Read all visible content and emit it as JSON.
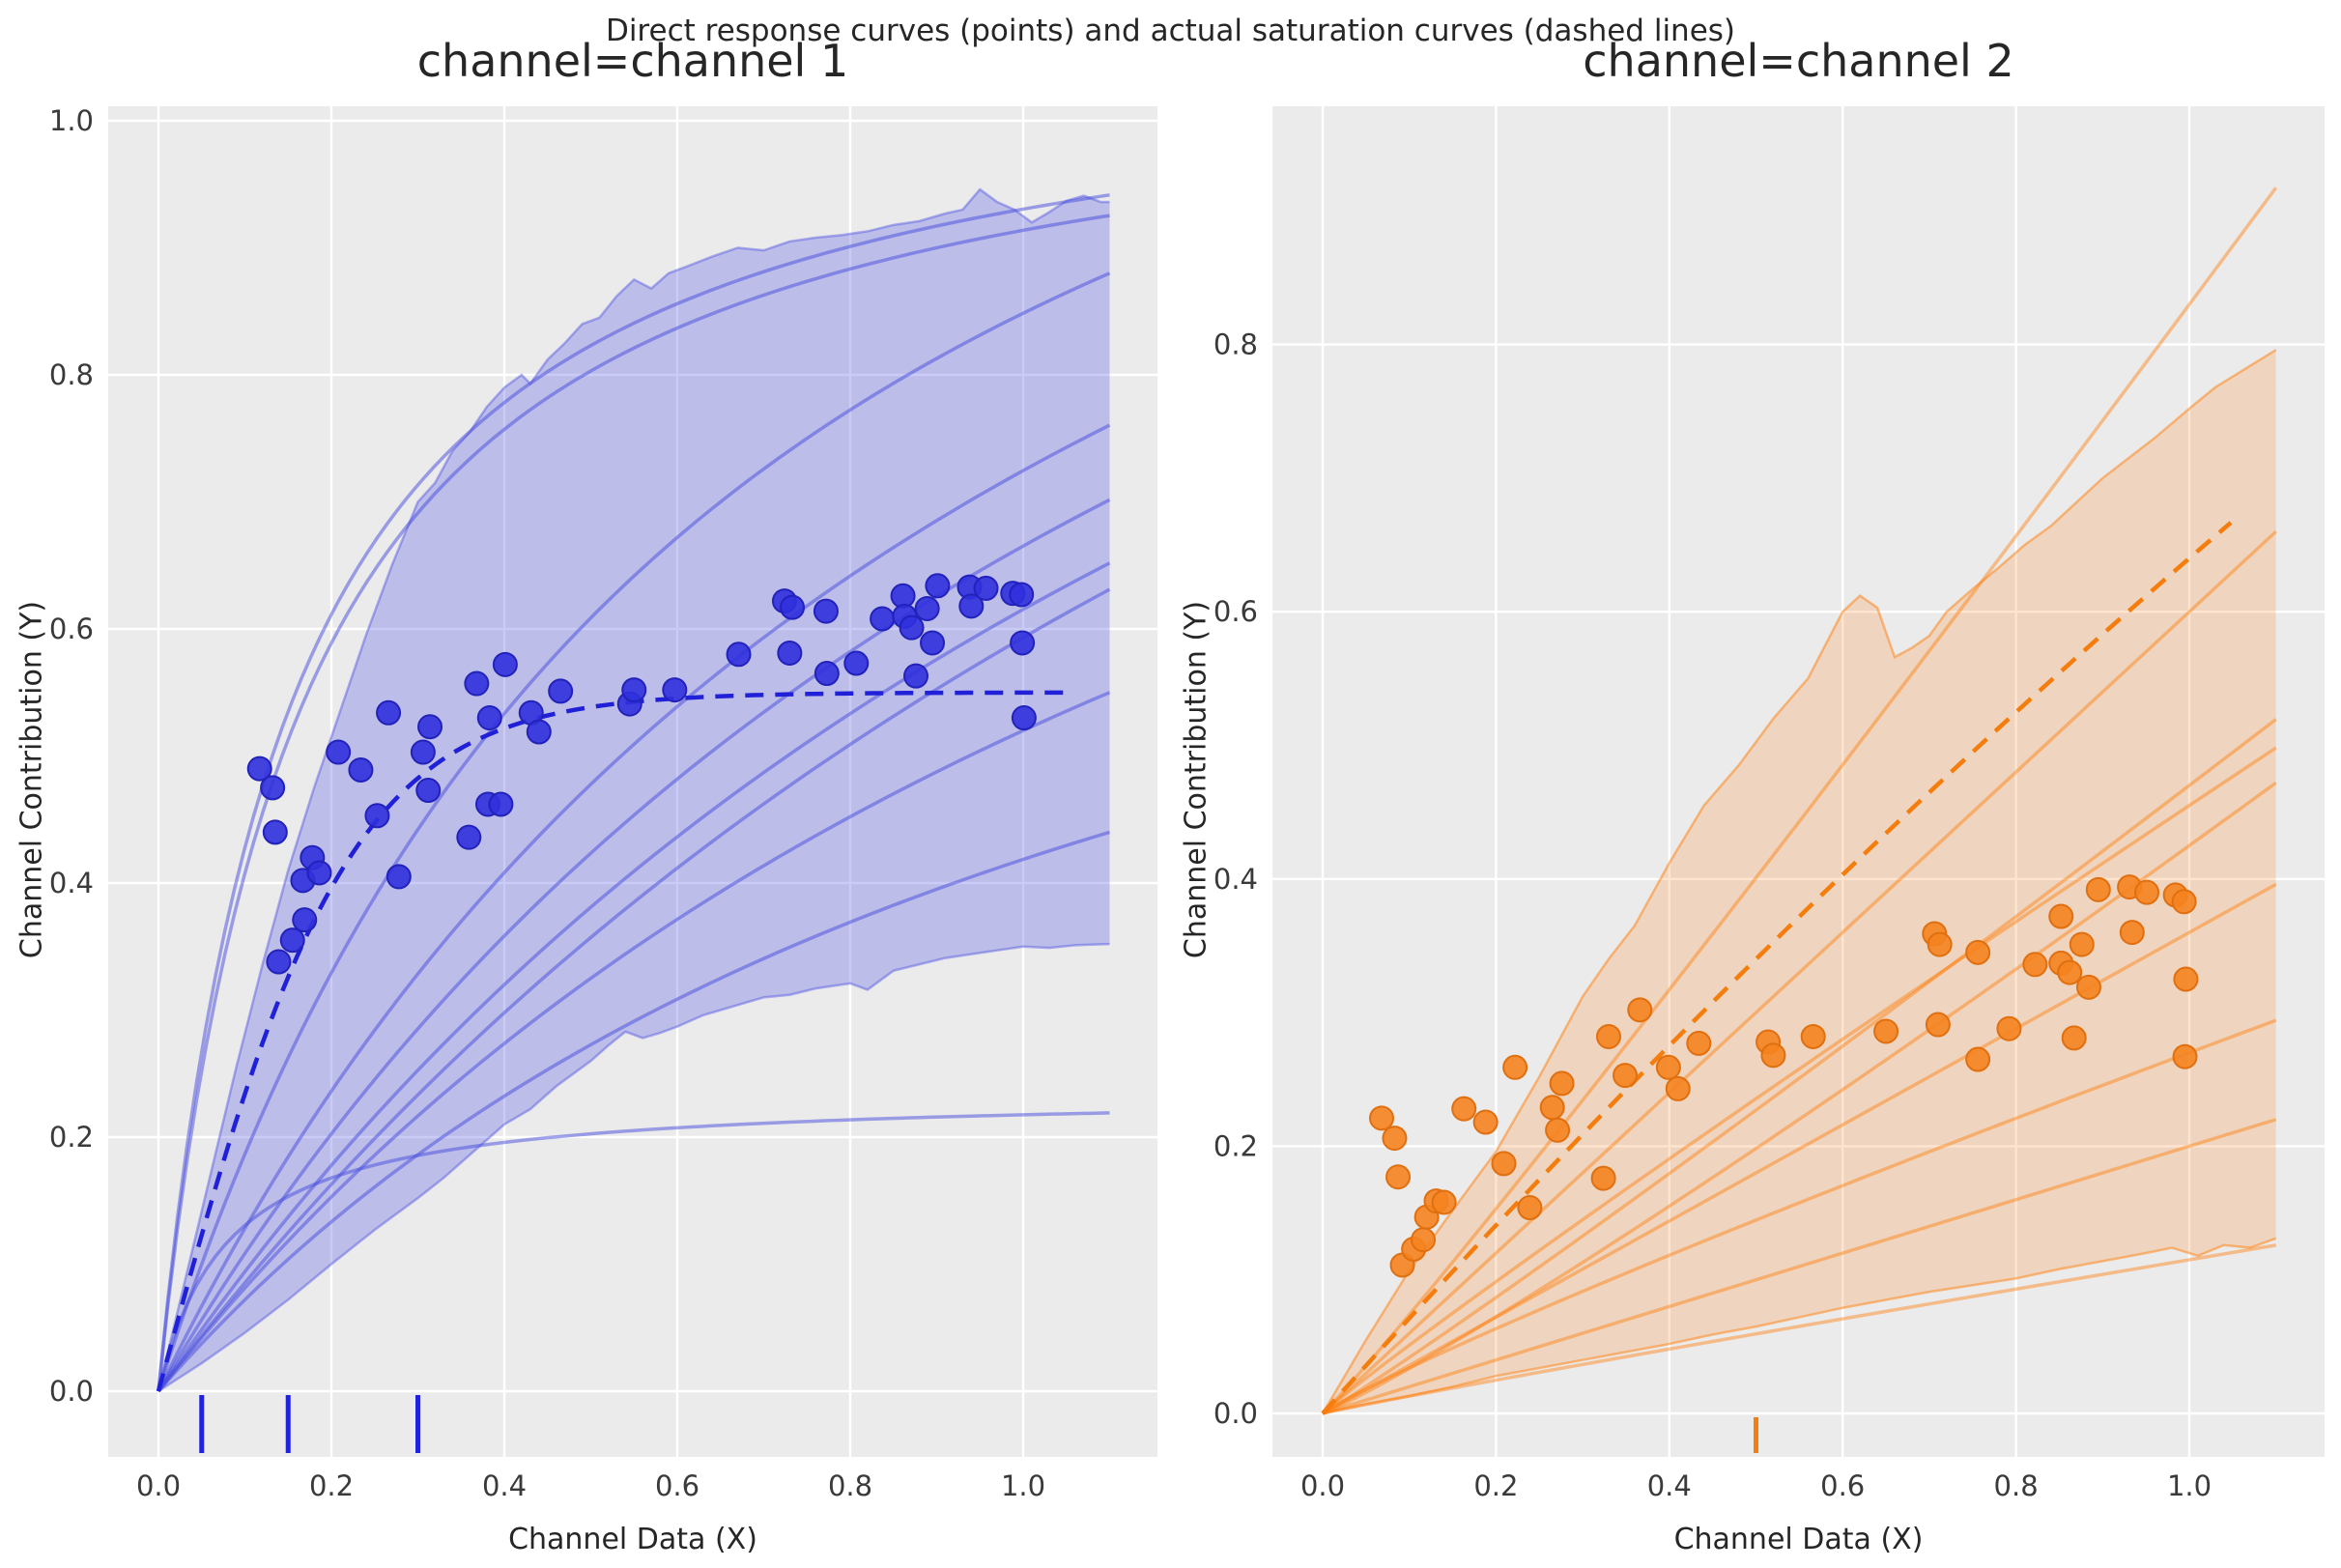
{
  "suptitle": "Direct response curves (points) and actual saturation curves (dashed lines)",
  "chart_data": [
    {
      "panel": "left",
      "type": "scatter",
      "title": "channel=channel 1",
      "xlabel": "Channel Data (X)",
      "ylabel": "Channel Contribution (Y)",
      "x_ticks": [
        0.0,
        0.2,
        0.4,
        0.6,
        0.8,
        1.0
      ],
      "y_ticks": [
        0.0,
        0.2,
        0.4,
        0.6,
        0.8,
        1.0
      ],
      "xlim": [
        -0.058,
        1.156
      ],
      "ylim": [
        -0.052,
        1.011
      ],
      "grid": true,
      "legend": "none",
      "colors": {
        "point": "#3030dd",
        "point_edge": "#2222bb",
        "dashed": "#2020d8",
        "curve": "rgba(70,75,222,0.5)",
        "band_fill": "rgba(79,84,226,0.30)",
        "band_edge": "rgba(79,84,226,0.45)",
        "rug": "#2222dd"
      },
      "scatter": [
        [
          0.117,
          0.49
        ],
        [
          0.132,
          0.475
        ],
        [
          0.135,
          0.44
        ],
        [
          0.139,
          0.338
        ],
        [
          0.155,
          0.355
        ],
        [
          0.167,
          0.402
        ],
        [
          0.169,
          0.371
        ],
        [
          0.178,
          0.42
        ],
        [
          0.186,
          0.408
        ],
        [
          0.208,
          0.503
        ],
        [
          0.234,
          0.489
        ],
        [
          0.253,
          0.453
        ],
        [
          0.266,
          0.534
        ],
        [
          0.278,
          0.405
        ],
        [
          0.306,
          0.503
        ],
        [
          0.312,
          0.473
        ],
        [
          0.314,
          0.523
        ],
        [
          0.359,
          0.436
        ],
        [
          0.368,
          0.557
        ],
        [
          0.381,
          0.462
        ],
        [
          0.396,
          0.462
        ],
        [
          0.383,
          0.53
        ],
        [
          0.401,
          0.572
        ],
        [
          0.431,
          0.534
        ],
        [
          0.44,
          0.519
        ],
        [
          0.465,
          0.551
        ],
        [
          0.545,
          0.541
        ],
        [
          0.55,
          0.552
        ],
        [
          0.597,
          0.552
        ],
        [
          0.671,
          0.58
        ],
        [
          0.724,
          0.622
        ],
        [
          0.733,
          0.617
        ],
        [
          0.73,
          0.581
        ],
        [
          0.772,
          0.614
        ],
        [
          0.773,
          0.565
        ],
        [
          0.807,
          0.573
        ],
        [
          0.837,
          0.608
        ],
        [
          0.861,
          0.626
        ],
        [
          0.863,
          0.61
        ],
        [
          0.871,
          0.601
        ],
        [
          0.876,
          0.563
        ],
        [
          0.889,
          0.616
        ],
        [
          0.895,
          0.589
        ],
        [
          0.901,
          0.634
        ],
        [
          0.938,
          0.633
        ],
        [
          0.94,
          0.618
        ],
        [
          0.957,
          0.632
        ],
        [
          0.988,
          0.628
        ],
        [
          0.998,
          0.627
        ],
        [
          0.999,
          0.589
        ],
        [
          1.001,
          0.53
        ]
      ],
      "dashed_curve": {
        "label": "actual saturation curve",
        "form": "tanh",
        "a": 0.55,
        "b": 0.22,
        "x_max": 1.05
      },
      "posterior_curves": [
        {
          "form": "hill",
          "a": 1.07,
          "k": 0.15
        },
        {
          "form": "hill",
          "a": 1.06,
          "k": 0.16
        },
        {
          "form": "hill",
          "a": 1.4,
          "k": 0.65
        },
        {
          "form": "hill",
          "a": 1.5,
          "k": 1.07
        },
        {
          "form": "hill",
          "a": 1.55,
          "k": 1.33
        },
        {
          "form": "hill",
          "a": 1.6,
          "k": 1.6
        },
        {
          "form": "hill",
          "a": 1.75,
          "k": 1.95
        },
        {
          "form": "hill",
          "a": 1.3,
          "k": 1.5
        },
        {
          "form": "hill",
          "a": 0.9,
          "k": 1.15
        },
        {
          "form": "hill",
          "a": 0.235,
          "k": 0.08
        }
      ],
      "band": {
        "top": [
          [
            0,
            0
          ],
          [
            0.03,
            0.085
          ],
          [
            0.06,
            0.17
          ],
          [
            0.09,
            0.255
          ],
          [
            0.12,
            0.335
          ],
          [
            0.15,
            0.41
          ],
          [
            0.18,
            0.475
          ],
          [
            0.21,
            0.535
          ],
          [
            0.24,
            0.595
          ],
          [
            0.27,
            0.65
          ],
          [
            0.3,
            0.7
          ],
          [
            0.32,
            0.715
          ],
          [
            0.34,
            0.74
          ],
          [
            0.36,
            0.755
          ],
          [
            0.38,
            0.775
          ],
          [
            0.4,
            0.79
          ],
          [
            0.42,
            0.8
          ],
          [
            0.43,
            0.793
          ],
          [
            0.45,
            0.812
          ],
          [
            0.47,
            0.825
          ],
          [
            0.49,
            0.84
          ],
          [
            0.51,
            0.845
          ],
          [
            0.53,
            0.862
          ],
          [
            0.55,
            0.875
          ],
          [
            0.57,
            0.868
          ],
          [
            0.59,
            0.88
          ],
          [
            0.61,
            0.885
          ],
          [
            0.64,
            0.893
          ],
          [
            0.67,
            0.9
          ],
          [
            0.7,
            0.898
          ],
          [
            0.73,
            0.905
          ],
          [
            0.76,
            0.908
          ],
          [
            0.79,
            0.91
          ],
          [
            0.82,
            0.913
          ],
          [
            0.85,
            0.918
          ],
          [
            0.88,
            0.921
          ],
          [
            0.91,
            0.927
          ],
          [
            0.93,
            0.93
          ],
          [
            0.95,
            0.946
          ],
          [
            0.97,
            0.936
          ],
          [
            0.99,
            0.93
          ],
          [
            1.01,
            0.92
          ],
          [
            1.03,
            0.928
          ],
          [
            1.05,
            0.937
          ],
          [
            1.07,
            0.941
          ],
          [
            1.09,
            0.936
          ],
          [
            1.1,
            0.936
          ]
        ],
        "bottom": [
          [
            0,
            0
          ],
          [
            0.05,
            0.022
          ],
          [
            0.1,
            0.046
          ],
          [
            0.15,
            0.072
          ],
          [
            0.2,
            0.1
          ],
          [
            0.25,
            0.127
          ],
          [
            0.3,
            0.152
          ],
          [
            0.33,
            0.168
          ],
          [
            0.36,
            0.186
          ],
          [
            0.4,
            0.21
          ],
          [
            0.43,
            0.222
          ],
          [
            0.46,
            0.24
          ],
          [
            0.5,
            0.26
          ],
          [
            0.52,
            0.272
          ],
          [
            0.54,
            0.283
          ],
          [
            0.56,
            0.278
          ],
          [
            0.58,
            0.282
          ],
          [
            0.6,
            0.287
          ],
          [
            0.63,
            0.296
          ],
          [
            0.66,
            0.302
          ],
          [
            0.7,
            0.31
          ],
          [
            0.73,
            0.312
          ],
          [
            0.76,
            0.317
          ],
          [
            0.8,
            0.321
          ],
          [
            0.82,
            0.316
          ],
          [
            0.85,
            0.331
          ],
          [
            0.88,
            0.336
          ],
          [
            0.91,
            0.341
          ],
          [
            0.94,
            0.344
          ],
          [
            0.97,
            0.347
          ],
          [
            1.0,
            0.35
          ],
          [
            1.03,
            0.349
          ],
          [
            1.06,
            0.351
          ],
          [
            1.1,
            0.352
          ]
        ]
      },
      "rug_x": [
        0.05,
        0.15,
        0.3
      ],
      "x_curve_max": 1.1
    },
    {
      "panel": "right",
      "type": "scatter",
      "title": "channel=channel 2",
      "xlabel": "Channel Data (X)",
      "ylabel": "Channel Contribution (Y)",
      "x_ticks": [
        0.0,
        0.2,
        0.4,
        0.6,
        0.8,
        1.0
      ],
      "y_ticks": [
        0.0,
        0.2,
        0.4,
        0.6,
        0.8
      ],
      "xlim": [
        -0.058,
        1.156
      ],
      "ylim": [
        -0.033,
        0.978
      ],
      "grid": true,
      "legend": "none",
      "colors": {
        "point": "#f5831f",
        "point_edge": "#e06f10",
        "dashed": "#f57d0d",
        "curve": "rgba(255,127,14,0.45)",
        "band_fill": "rgba(255,127,14,0.20)",
        "band_edge": "rgba(255,127,14,0.5)",
        "rug": "#f57d0d"
      },
      "scatter": [
        [
          0.068,
          0.221
        ],
        [
          0.083,
          0.206
        ],
        [
          0.087,
          0.177
        ],
        [
          0.092,
          0.111
        ],
        [
          0.105,
          0.123
        ],
        [
          0.116,
          0.13
        ],
        [
          0.12,
          0.147
        ],
        [
          0.131,
          0.159
        ],
        [
          0.14,
          0.158
        ],
        [
          0.163,
          0.228
        ],
        [
          0.188,
          0.218
        ],
        [
          0.209,
          0.187
        ],
        [
          0.222,
          0.259
        ],
        [
          0.239,
          0.154
        ],
        [
          0.265,
          0.229
        ],
        [
          0.271,
          0.212
        ],
        [
          0.276,
          0.247
        ],
        [
          0.324,
          0.176
        ],
        [
          0.33,
          0.282
        ],
        [
          0.349,
          0.253
        ],
        [
          0.366,
          0.302
        ],
        [
          0.399,
          0.259
        ],
        [
          0.41,
          0.243
        ],
        [
          0.434,
          0.277
        ],
        [
          0.514,
          0.278
        ],
        [
          0.52,
          0.268
        ],
        [
          0.566,
          0.282
        ],
        [
          0.65,
          0.286
        ],
        [
          0.706,
          0.359
        ],
        [
          0.71,
          0.291
        ],
        [
          0.712,
          0.351
        ],
        [
          0.756,
          0.345
        ],
        [
          0.756,
          0.265
        ],
        [
          0.792,
          0.288
        ],
        [
          0.822,
          0.336
        ],
        [
          0.852,
          0.372
        ],
        [
          0.852,
          0.337
        ],
        [
          0.862,
          0.33
        ],
        [
          0.867,
          0.281
        ],
        [
          0.876,
          0.351
        ],
        [
          0.884,
          0.319
        ],
        [
          0.895,
          0.392
        ],
        [
          0.931,
          0.394
        ],
        [
          0.934,
          0.36
        ],
        [
          0.951,
          0.39
        ],
        [
          0.984,
          0.388
        ],
        [
          0.994,
          0.383
        ],
        [
          0.995,
          0.267
        ],
        [
          0.996,
          0.325
        ]
      ],
      "dashed_curve": {
        "label": "actual saturation curve",
        "form": "quad",
        "a": 0.72,
        "b": -0.08,
        "x_max": 1.05
      },
      "posterior_curves": [
        {
          "form": "pow",
          "a": 0.83,
          "p": 1.05
        },
        {
          "form": "pow",
          "a": 0.6,
          "p": 1.0
        },
        {
          "form": "pow",
          "a": 0.47,
          "p": 1.05
        },
        {
          "form": "pow",
          "a": 0.455,
          "p": 0.95
        },
        {
          "form": "pow",
          "a": 0.425,
          "p": 1.1
        },
        {
          "form": "pow",
          "a": 0.36,
          "p": 1.0
        },
        {
          "form": "pow",
          "a": 0.27,
          "p": 0.9
        },
        {
          "form": "pow",
          "a": 0.2,
          "p": 1.0
        },
        {
          "form": "pow",
          "a": 0.115,
          "p": 0.95
        }
      ],
      "band": {
        "top": [
          [
            0,
            0
          ],
          [
            0.05,
            0.055
          ],
          [
            0.1,
            0.107
          ],
          [
            0.15,
            0.152
          ],
          [
            0.2,
            0.196
          ],
          [
            0.25,
            0.252
          ],
          [
            0.3,
            0.312
          ],
          [
            0.33,
            0.34
          ],
          [
            0.36,
            0.365
          ],
          [
            0.4,
            0.412
          ],
          [
            0.44,
            0.455
          ],
          [
            0.48,
            0.485
          ],
          [
            0.52,
            0.52
          ],
          [
            0.56,
            0.55
          ],
          [
            0.6,
            0.6
          ],
          [
            0.62,
            0.612
          ],
          [
            0.64,
            0.603
          ],
          [
            0.66,
            0.566
          ],
          [
            0.68,
            0.573
          ],
          [
            0.7,
            0.582
          ],
          [
            0.72,
            0.6
          ],
          [
            0.75,
            0.617
          ],
          [
            0.78,
            0.633
          ],
          [
            0.81,
            0.65
          ],
          [
            0.84,
            0.664
          ],
          [
            0.87,
            0.682
          ],
          [
            0.9,
            0.7
          ],
          [
            0.93,
            0.715
          ],
          [
            0.96,
            0.73
          ],
          [
            1.0,
            0.752
          ],
          [
            1.03,
            0.768
          ],
          [
            1.06,
            0.78
          ],
          [
            1.1,
            0.796
          ]
        ],
        "bottom": [
          [
            0,
            0
          ],
          [
            0.05,
            0.007
          ],
          [
            0.1,
            0.013
          ],
          [
            0.15,
            0.02
          ],
          [
            0.2,
            0.028
          ],
          [
            0.25,
            0.034
          ],
          [
            0.3,
            0.04
          ],
          [
            0.35,
            0.046
          ],
          [
            0.4,
            0.052
          ],
          [
            0.45,
            0.059
          ],
          [
            0.5,
            0.065
          ],
          [
            0.55,
            0.072
          ],
          [
            0.6,
            0.079
          ],
          [
            0.65,
            0.085
          ],
          [
            0.7,
            0.091
          ],
          [
            0.75,
            0.096
          ],
          [
            0.8,
            0.101
          ],
          [
            0.85,
            0.108
          ],
          [
            0.9,
            0.114
          ],
          [
            0.95,
            0.12
          ],
          [
            0.98,
            0.124
          ],
          [
            1.01,
            0.118
          ],
          [
            1.04,
            0.126
          ],
          [
            1.07,
            0.124
          ],
          [
            1.1,
            0.131
          ]
        ]
      },
      "rug_x": [
        0.5
      ],
      "x_curve_max": 1.1
    }
  ],
  "style": {
    "axes_background": "#ebebeb",
    "grid_color": "#ffffff",
    "text_color": "#3a3a3a"
  }
}
